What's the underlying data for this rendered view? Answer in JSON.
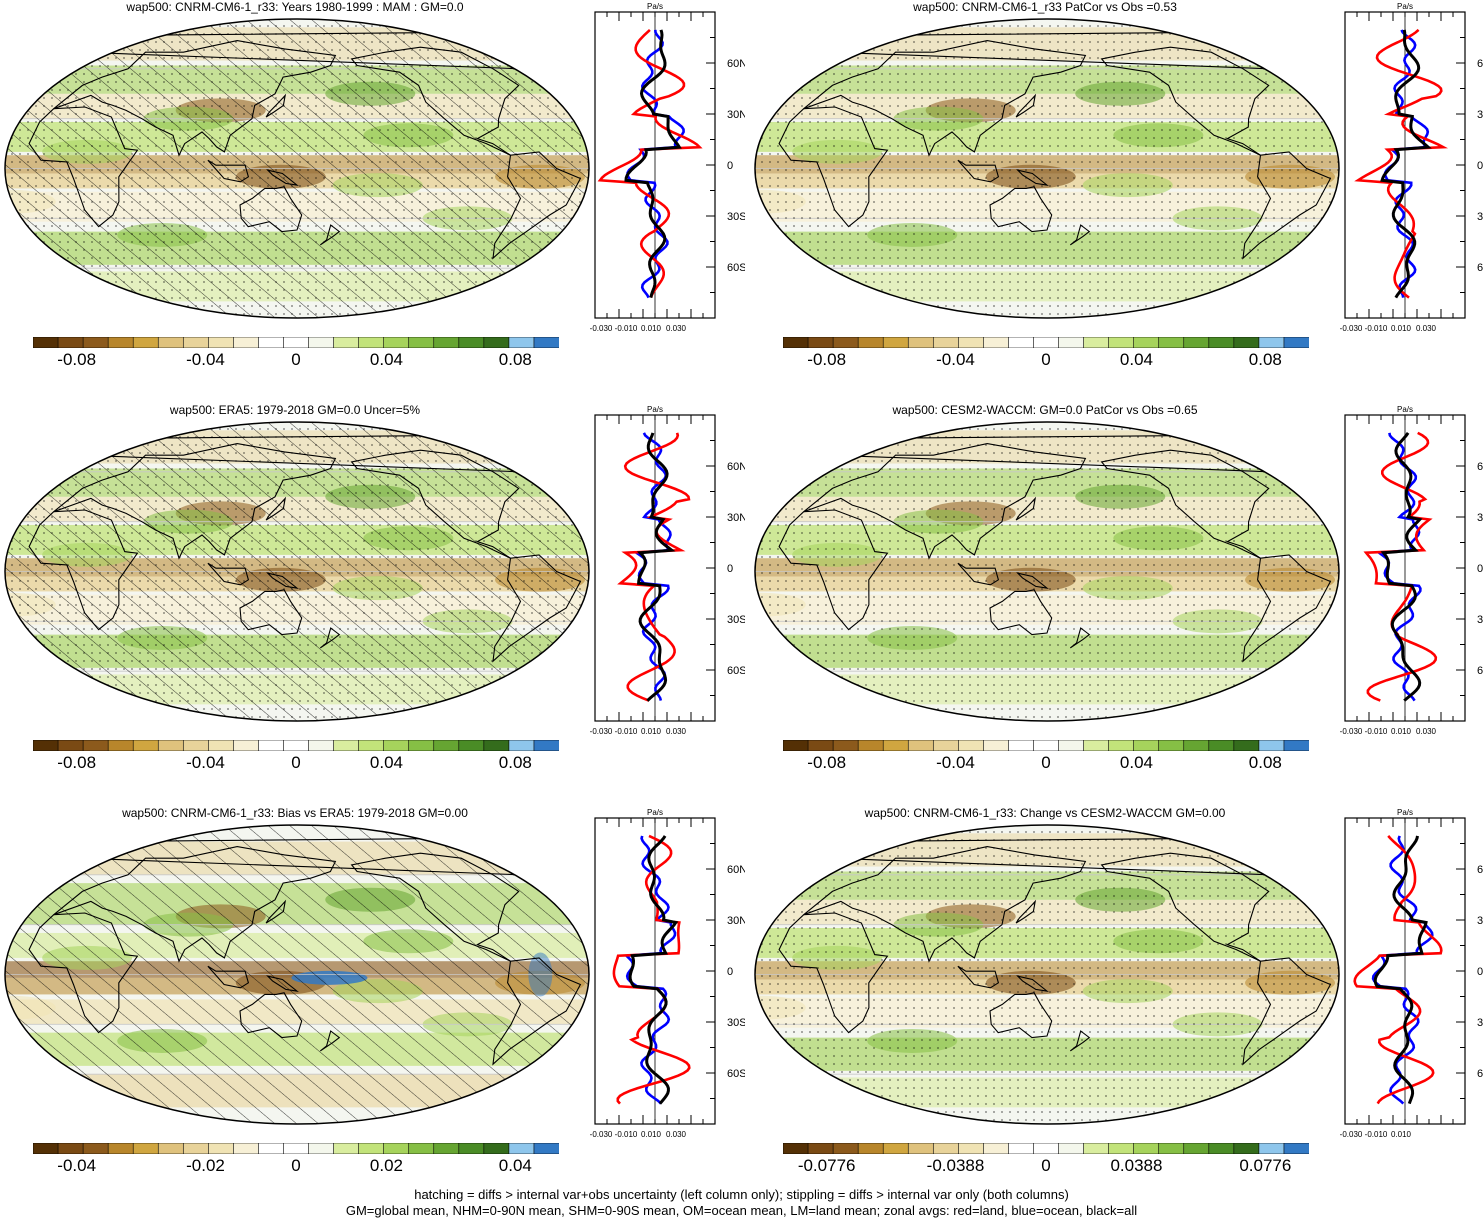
{
  "panels": [
    {
      "title": "wap500: CNRM-CM6-1_r33: Years 1980-1999 : MAM : GM=0.0",
      "hatching": true,
      "stipple": true,
      "bias": false,
      "colorbar_labels": [
        "-0.08",
        "-0.04",
        "0",
        "0.04",
        "0.08"
      ],
      "zonal_xticks": [
        "-0.030",
        "-0.010",
        "0.010",
        "0.030"
      ]
    },
    {
      "title": "wap500: CNRM-CM6-1_r33 PatCor vs Obs =0.53",
      "hatching": false,
      "stipple": true,
      "bias": false,
      "colorbar_labels": [
        "-0.08",
        "-0.04",
        "0",
        "0.04",
        "0.08"
      ],
      "zonal_xticks": [
        "-0.030",
        "-0.010",
        "0.010",
        "0.030"
      ]
    },
    {
      "title": "wap500: ERA5: 1979-2018 GM=0.0 Uncer=5%",
      "hatching": true,
      "stipple": true,
      "bias": false,
      "colorbar_labels": [
        "-0.08",
        "-0.04",
        "0",
        "0.04",
        "0.08"
      ],
      "zonal_xticks": [
        "-0.030",
        "-0.010",
        "0.010",
        "0.030"
      ]
    },
    {
      "title": "wap500: CESM2-WACCM: GM=0.0 PatCor vs Obs =0.65",
      "hatching": false,
      "stipple": true,
      "bias": false,
      "colorbar_labels": [
        "-0.08",
        "-0.04",
        "0",
        "0.04",
        "0.08"
      ],
      "zonal_xticks": [
        "-0.030",
        "-0.010",
        "0.010",
        "0.030"
      ]
    },
    {
      "title": "wap500: CNRM-CM6-1_r33: Bias vs ERA5: 1979-2018 GM=0.00",
      "hatching": true,
      "stipple": false,
      "bias": true,
      "colorbar_labels": [
        "-0.04",
        "-0.02",
        "0",
        "0.02",
        "0.04"
      ],
      "zonal_xticks": [
        "-0.030",
        "-0.010",
        "0.010",
        "0.030"
      ]
    },
    {
      "title": "wap500: CNRM-CM6-1_r33: Change vs CESM2-WACCM GM=0.00",
      "hatching": false,
      "stipple": true,
      "bias": false,
      "colorbar_labels": [
        "-0.0776",
        "-0.0388",
        "0",
        "0.0388",
        "0.0776"
      ],
      "zonal_xticks": [
        "-0.030",
        "-0.010",
        "0.010"
      ]
    }
  ],
  "zonal_units": "Pa/s",
  "lat_labels": [
    "60N",
    "30N",
    "0",
    "30S",
    "60S"
  ],
  "colormap": [
    "#543005",
    "#7a4a14",
    "#8c5a1c",
    "#b8862b",
    "#d0a640",
    "#dfc27d",
    "#e8d39a",
    "#f0e3b4",
    "#f7f0d6",
    "#ffffff",
    "#ffffff",
    "#f4f7ec",
    "#d9ed9f",
    "#c2e37a",
    "#a6d35c",
    "#86bf45",
    "#66a532",
    "#4a8c26",
    "#346c1c",
    "#8ec6ec",
    "#3279c4"
  ],
  "line_colors": {
    "land": "#ff0000",
    "ocean": "#0000ff",
    "all": "#000000"
  },
  "footer": {
    "line1": "hatching = diffs > internal var+obs uncertainty (left column only); stippling = diffs > internal var only (both columns)",
    "line2": "GM=global mean, NHM=0-90N mean, SHM=0-90S mean, OM=ocean mean, LM=land mean; zonal avgs: red=land, blue=ocean, black=all"
  }
}
